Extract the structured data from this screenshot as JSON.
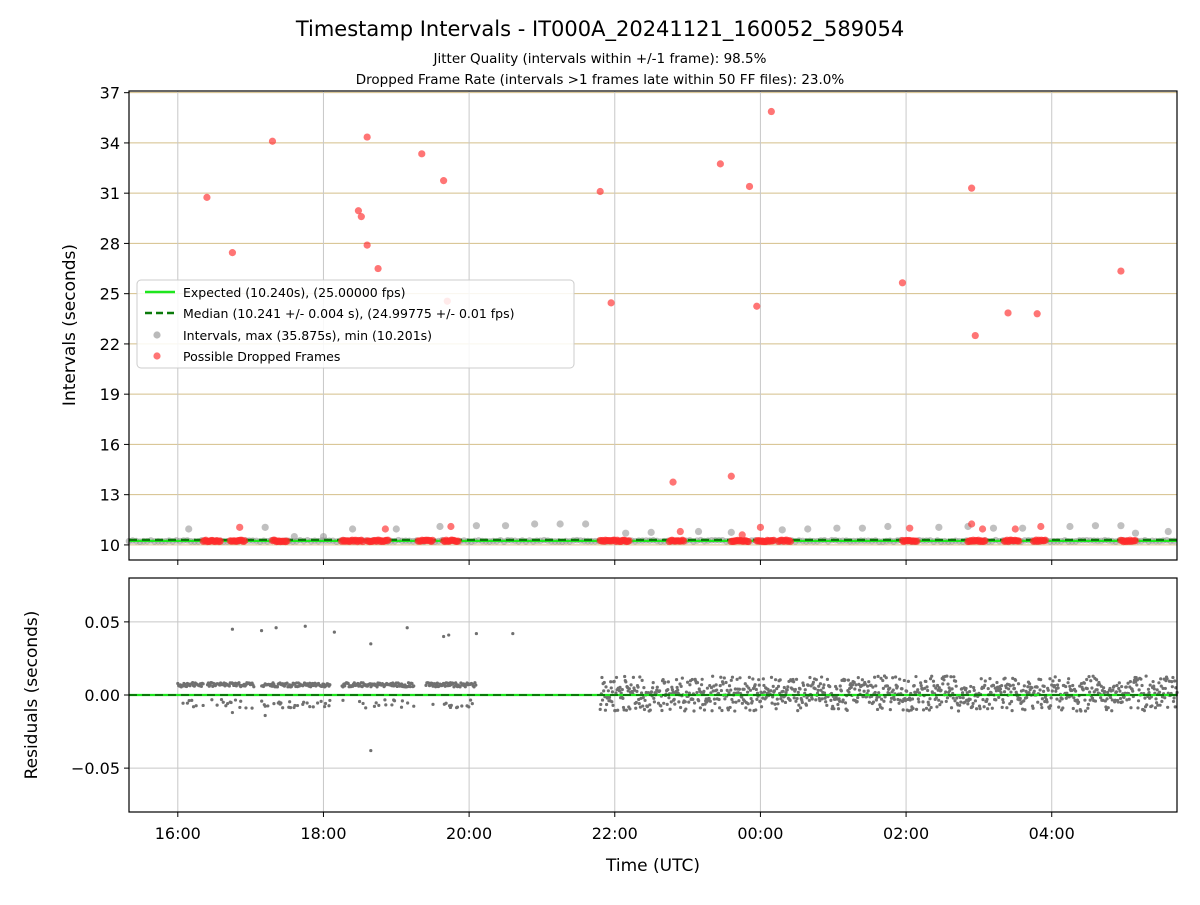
{
  "chart_data": {
    "title": "Timestamp Intervals - IT000A_20241121_160052_589054",
    "subtitle_lines": [
      "Jitter Quality (intervals within +/-1 frame): 98.5%",
      "Dropped Frame Rate (intervals >1 frames late within 50 FF files): 23.0%"
    ],
    "xlabel": "Time (UTC)",
    "x_tick_labels": [
      "16:00",
      "18:00",
      "20:00",
      "22:00",
      "00:00",
      "02:00",
      "04:00"
    ],
    "x_tick_hours": [
      0,
      2,
      4,
      6,
      8,
      10,
      12
    ],
    "x_range_hours": [
      -0.67,
      13.72
    ],
    "panels": [
      {
        "type": "scatter",
        "ylabel": "Intervals (seconds)",
        "ylim": [
          9.1,
          37.1
        ],
        "y_ticks": [
          10,
          13,
          16,
          19,
          22,
          25,
          28,
          31,
          34,
          37
        ],
        "y_tick_labels": [
          "10",
          "13",
          "16",
          "19",
          "22",
          "25",
          "28",
          "31",
          "34",
          "37"
        ],
        "grid": "on",
        "legend_position": "center-left",
        "legend": [
          {
            "label": "Expected (10.240s), (25.00000 fps)",
            "kind": "line",
            "color": "#1ee61e"
          },
          {
            "label": "Median (10.241 +/- 0.004 s), (24.99775 +/- 0.01 fps)",
            "kind": "dashed-line",
            "color": "#0a7a0a"
          },
          {
            "label": "Intervals, max (35.875s), min (10.201s)",
            "kind": "marker",
            "color": "#8c8c8c"
          },
          {
            "label": "Possible Dropped Frames",
            "kind": "marker",
            "color": "#ff2b2b"
          }
        ],
        "expected_line": 10.24,
        "median_line": 10.241,
        "intervals_baseline": 10.241,
        "interval_points": [
          [
            0.15,
            10.95
          ],
          [
            1.2,
            11.05
          ],
          [
            1.6,
            10.5
          ],
          [
            2.0,
            10.5
          ],
          [
            2.4,
            10.95
          ],
          [
            3.0,
            10.95
          ],
          [
            3.6,
            11.1
          ],
          [
            4.1,
            11.15
          ],
          [
            4.5,
            11.15
          ],
          [
            4.9,
            11.25
          ],
          [
            5.25,
            11.25
          ],
          [
            5.6,
            11.25
          ],
          [
            6.15,
            10.7
          ],
          [
            6.5,
            10.75
          ],
          [
            7.15,
            10.8
          ],
          [
            7.6,
            10.75
          ],
          [
            8.3,
            10.9
          ],
          [
            8.65,
            10.95
          ],
          [
            9.05,
            11.0
          ],
          [
            9.4,
            11.0
          ],
          [
            9.75,
            11.1
          ],
          [
            10.45,
            11.05
          ],
          [
            10.85,
            11.1
          ],
          [
            11.2,
            11.0
          ],
          [
            11.6,
            11.0
          ],
          [
            12.25,
            11.1
          ],
          [
            12.6,
            11.15
          ],
          [
            12.95,
            11.15
          ],
          [
            13.15,
            10.7
          ],
          [
            13.6,
            10.8
          ]
        ],
        "dropped_points": [
          [
            0.4,
            30.75
          ],
          [
            0.75,
            27.45
          ],
          [
            1.3,
            34.1
          ],
          [
            2.6,
            34.35
          ],
          [
            2.48,
            29.95
          ],
          [
            2.52,
            29.6
          ],
          [
            2.6,
            27.9
          ],
          [
            2.75,
            26.5
          ],
          [
            3.35,
            33.35
          ],
          [
            3.65,
            31.75
          ],
          [
            3.7,
            24.55
          ],
          [
            5.8,
            31.1
          ],
          [
            5.95,
            24.45
          ],
          [
            6.8,
            13.75
          ],
          [
            7.45,
            32.75
          ],
          [
            7.6,
            14.1
          ],
          [
            7.85,
            31.4
          ],
          [
            7.95,
            24.25
          ],
          [
            8.15,
            35.875
          ],
          [
            9.95,
            25.65
          ],
          [
            10.9,
            31.3
          ],
          [
            10.95,
            22.5
          ],
          [
            11.4,
            23.85
          ],
          [
            11.8,
            23.8
          ],
          [
            12.95,
            26.35
          ],
          [
            0.85,
            11.05
          ],
          [
            2.85,
            10.95
          ],
          [
            3.75,
            11.1
          ],
          [
            6.9,
            10.8
          ],
          [
            7.75,
            10.6
          ],
          [
            8.0,
            11.05
          ],
          [
            10.05,
            11.0
          ],
          [
            10.9,
            11.25
          ],
          [
            11.05,
            10.95
          ],
          [
            11.5,
            10.95
          ],
          [
            11.85,
            11.1
          ]
        ],
        "dropped_clusters_x": [
          [
            0.35,
            0.6
          ],
          [
            0.72,
            0.92
          ],
          [
            1.3,
            1.5
          ],
          [
            2.25,
            2.55
          ],
          [
            2.6,
            2.9
          ],
          [
            3.3,
            3.5
          ],
          [
            3.65,
            3.85
          ],
          [
            5.8,
            6.2
          ],
          [
            6.75,
            6.95
          ],
          [
            7.6,
            7.85
          ],
          [
            7.95,
            8.2
          ],
          [
            8.25,
            8.42
          ],
          [
            9.95,
            10.15
          ],
          [
            10.85,
            11.1
          ],
          [
            11.35,
            11.55
          ],
          [
            11.75,
            11.92
          ],
          [
            12.95,
            13.15
          ]
        ]
      },
      {
        "type": "scatter",
        "ylabel": "Residuals (seconds)",
        "ylim": [
          -0.08,
          0.08
        ],
        "y_ticks": [
          0.05,
          0.0,
          -0.05
        ],
        "y_tick_labels": [
          "0.05",
          "0.00",
          "−0.05"
        ],
        "grid": "on",
        "zero_line": 0.0,
        "outliers": [
          [
            0.75,
            0.045
          ],
          [
            1.15,
            0.044
          ],
          [
            1.35,
            0.046
          ],
          [
            1.75,
            0.047
          ],
          [
            2.15,
            0.043
          ],
          [
            2.65,
            0.035
          ],
          [
            3.15,
            0.046
          ],
          [
            3.65,
            0.04
          ],
          [
            3.72,
            0.041
          ],
          [
            4.1,
            0.042
          ],
          [
            4.6,
            0.042
          ],
          [
            2.65,
            -0.038
          ],
          [
            0.75,
            -0.012
          ],
          [
            1.2,
            -0.014
          ]
        ]
      }
    ]
  },
  "colors": {
    "expected": "#1ee61e",
    "median": "#0a7a0a",
    "interval": "#8c8c8c",
    "dropped": "#ff2b2b",
    "hgrid_top": "#d4bf8a",
    "vgrid": "#c8c8c8",
    "residual": "#707070"
  }
}
